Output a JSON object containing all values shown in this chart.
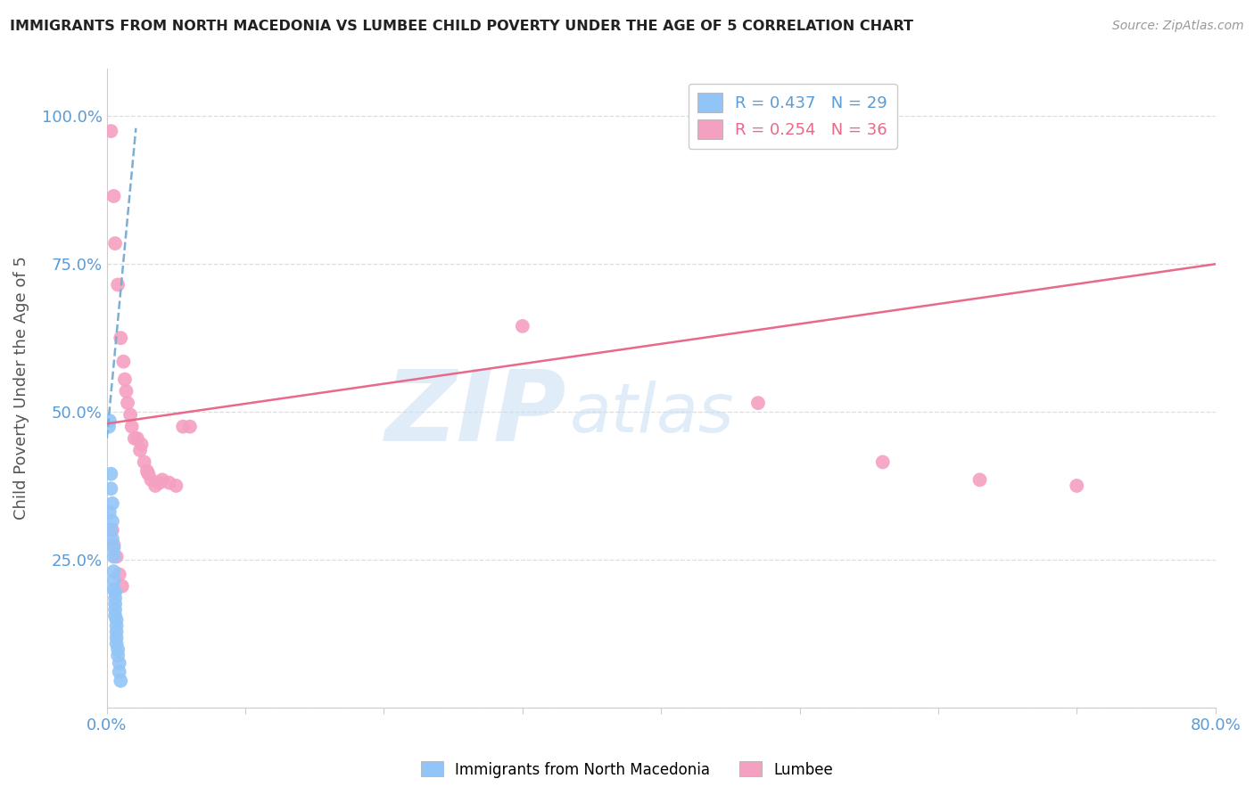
{
  "title": "IMMIGRANTS FROM NORTH MACEDONIA VS LUMBEE CHILD POVERTY UNDER THE AGE OF 5 CORRELATION CHART",
  "source": "Source: ZipAtlas.com",
  "ylabel": "Child Poverty Under the Age of 5",
  "xlim": [
    0.0,
    0.8
  ],
  "ylim": [
    0.0,
    1.08
  ],
  "xticks": [
    0.0,
    0.1,
    0.2,
    0.3,
    0.4,
    0.5,
    0.6,
    0.7,
    0.8
  ],
  "xticklabels": [
    "0.0%",
    "",
    "",
    "",
    "",
    "",
    "",
    "",
    "80.0%"
  ],
  "yticks": [
    0.0,
    0.25,
    0.5,
    0.75,
    1.0
  ],
  "yticklabels": [
    "",
    "25.0%",
    "50.0%",
    "75.0%",
    "100.0%"
  ],
  "legend_r1": "R = 0.437",
  "legend_n1": "N = 29",
  "legend_r2": "R = 0.254",
  "legend_n2": "N = 36",
  "watermark_zip": "ZIP",
  "watermark_atlas": "atlas",
  "blue_color": "#92C5F7",
  "pink_color": "#F4A0C0",
  "blue_line_color": "#7BAFD4",
  "pink_line_color": "#E8698A",
  "macedonia_points": [
    [
      0.0015,
      0.475
    ],
    [
      0.002,
      0.485
    ],
    [
      0.002,
      0.33
    ],
    [
      0.003,
      0.395
    ],
    [
      0.003,
      0.37
    ],
    [
      0.003,
      0.3
    ],
    [
      0.004,
      0.345
    ],
    [
      0.004,
      0.315
    ],
    [
      0.004,
      0.285
    ],
    [
      0.005,
      0.27
    ],
    [
      0.005,
      0.255
    ],
    [
      0.005,
      0.23
    ],
    [
      0.005,
      0.215
    ],
    [
      0.005,
      0.2
    ],
    [
      0.006,
      0.195
    ],
    [
      0.006,
      0.185
    ],
    [
      0.006,
      0.175
    ],
    [
      0.006,
      0.165
    ],
    [
      0.006,
      0.155
    ],
    [
      0.007,
      0.148
    ],
    [
      0.007,
      0.138
    ],
    [
      0.007,
      0.128
    ],
    [
      0.007,
      0.118
    ],
    [
      0.007,
      0.108
    ],
    [
      0.008,
      0.098
    ],
    [
      0.008,
      0.088
    ],
    [
      0.009,
      0.075
    ],
    [
      0.009,
      0.06
    ],
    [
      0.01,
      0.045
    ]
  ],
  "lumbee_points": [
    [
      0.003,
      0.975
    ],
    [
      0.005,
      0.865
    ],
    [
      0.006,
      0.785
    ],
    [
      0.008,
      0.715
    ],
    [
      0.01,
      0.625
    ],
    [
      0.012,
      0.585
    ],
    [
      0.013,
      0.555
    ],
    [
      0.014,
      0.535
    ],
    [
      0.015,
      0.515
    ],
    [
      0.017,
      0.495
    ],
    [
      0.018,
      0.475
    ],
    [
      0.02,
      0.455
    ],
    [
      0.022,
      0.455
    ],
    [
      0.024,
      0.435
    ],
    [
      0.025,
      0.445
    ],
    [
      0.027,
      0.415
    ],
    [
      0.029,
      0.4
    ],
    [
      0.03,
      0.395
    ],
    [
      0.032,
      0.385
    ],
    [
      0.035,
      0.375
    ],
    [
      0.038,
      0.38
    ],
    [
      0.04,
      0.385
    ],
    [
      0.045,
      0.38
    ],
    [
      0.05,
      0.375
    ],
    [
      0.055,
      0.475
    ],
    [
      0.06,
      0.475
    ],
    [
      0.3,
      0.645
    ],
    [
      0.47,
      0.515
    ],
    [
      0.56,
      0.415
    ],
    [
      0.63,
      0.385
    ],
    [
      0.7,
      0.375
    ],
    [
      0.004,
      0.3
    ],
    [
      0.005,
      0.275
    ],
    [
      0.007,
      0.255
    ],
    [
      0.009,
      0.225
    ],
    [
      0.011,
      0.205
    ]
  ],
  "blue_regline_x": [
    0.0,
    0.021
  ],
  "blue_regline_y": [
    0.455,
    0.98
  ],
  "pink_regline_x": [
    0.0,
    0.8
  ],
  "pink_regline_y": [
    0.48,
    0.75
  ]
}
